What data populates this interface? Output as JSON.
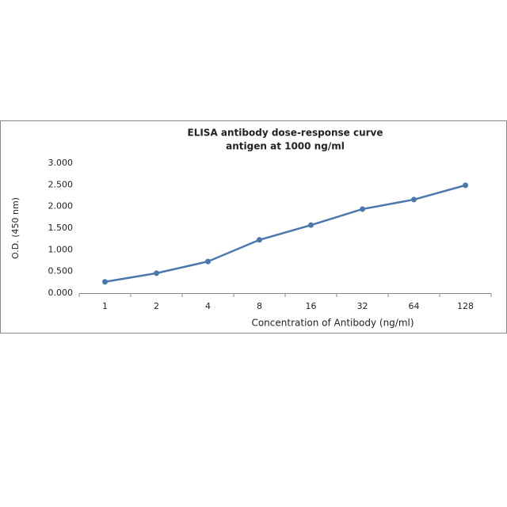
{
  "chart_data": {
    "type": "line",
    "title": "ELISA antibody dose-response curve",
    "subtitle": "antigen at 1000 ng/ml",
    "y_label": "O.D. (450 nm)",
    "x_label": "Concentration of Antibody (ng/ml)",
    "categories": [
      "1",
      "2",
      "4",
      "8",
      "16",
      "32",
      "64",
      "128"
    ],
    "values": [
      0.26,
      0.46,
      0.73,
      1.23,
      1.57,
      1.94,
      2.16,
      2.49
    ],
    "color": "#4a78ad",
    "ylim": [
      0,
      3
    ],
    "yticks": [
      {
        "value": 0,
        "label": "0.000"
      },
      {
        "value": 0.5,
        "label": "0.500"
      },
      {
        "value": 1,
        "label": "1.000"
      },
      {
        "value": 1.5,
        "label": "1.500"
      },
      {
        "value": 2,
        "label": "2.000"
      },
      {
        "value": 2.5,
        "label": "2.500"
      },
      {
        "value": 3,
        "label": "3.000"
      }
    ],
    "grid": false
  }
}
